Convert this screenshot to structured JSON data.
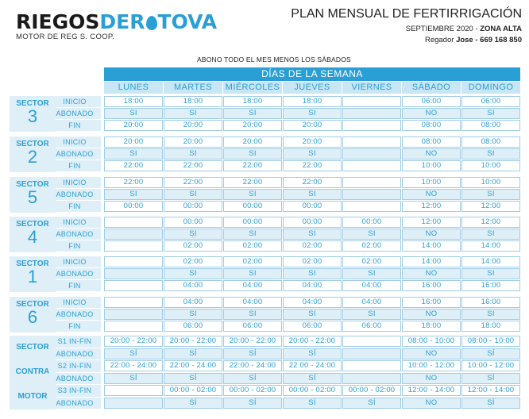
{
  "logo": {
    "part1": "RIEGOS",
    "part2": "DER",
    "part3": "TOVA",
    "sub": "MOTOR DE REG S. COOP."
  },
  "header": {
    "title": "PLAN MENSUAL DE FERTIRRIGACIÓN",
    "period": "SEPTIEMBRE 2020 - ",
    "zone": "ZONA ALTA",
    "regador_label": "Regador ",
    "regador_name": "Jose - 669 168 850"
  },
  "note": "ABONO TODO EL MES MENOS LOS SÁBADOS",
  "banner": "DÍAS DE LA SEMANA",
  "days": [
    "LUNES",
    "MARTES",
    "MIÉRCOLES",
    "JUEVES",
    "VIERNES",
    "SÁBADO",
    "DOMINGO"
  ],
  "row_labels": [
    "INICIO",
    "ABONADO",
    "FIN"
  ],
  "sector_word": "SECTOR",
  "sectors": [
    {
      "num": "3",
      "rows": [
        [
          "18:00",
          "18:00",
          "18:00",
          "18:00",
          "",
          "06:00",
          "06:00"
        ],
        [
          "SI",
          "SI",
          "SI",
          "SI",
          "",
          "NO",
          "SI"
        ],
        [
          "20:00",
          "20:00",
          "20:00",
          "20:00",
          "",
          "08:00",
          "08:00"
        ]
      ]
    },
    {
      "num": "2",
      "rows": [
        [
          "20:00",
          "20:00",
          "20:00",
          "20:00",
          "",
          "08:00",
          "08:00"
        ],
        [
          "SI",
          "SI",
          "SI",
          "SI",
          "",
          "NO",
          "SI"
        ],
        [
          "22:00",
          "22:00",
          "22:00",
          "22:00",
          "",
          "10:00",
          "10:00"
        ]
      ]
    },
    {
      "num": "5",
      "rows": [
        [
          "22:00",
          "22:00",
          "22:00",
          "22:00",
          "",
          "10:00",
          "10:00"
        ],
        [
          "SI",
          "SI",
          "SI",
          "SI",
          "",
          "NO",
          "SI"
        ],
        [
          "00:00",
          "00:00",
          "00:00",
          "00:00",
          "",
          "12:00",
          "12:00"
        ]
      ]
    },
    {
      "num": "4",
      "rows": [
        [
          "",
          "00:00",
          "00:00",
          "00:00",
          "00:00",
          "12:00",
          "12:00"
        ],
        [
          "",
          "SI",
          "SI",
          "SI",
          "SI",
          "NO",
          "SI"
        ],
        [
          "",
          "02:00",
          "02:00",
          "02:00",
          "02:00",
          "14:00",
          "14:00"
        ]
      ]
    },
    {
      "num": "1",
      "rows": [
        [
          "",
          "02:00",
          "02:00",
          "02:00",
          "02:00",
          "14:00",
          "14:00"
        ],
        [
          "",
          "SI",
          "SI",
          "SI",
          "SI",
          "NO",
          "SI"
        ],
        [
          "",
          "04:00",
          "04:00",
          "04:00",
          "04:00",
          "16:00",
          "16:00"
        ]
      ]
    },
    {
      "num": "6",
      "rows": [
        [
          "",
          "04:00",
          "04:00",
          "04:00",
          "04:00",
          "16:00",
          "16:00"
        ],
        [
          "",
          "SI",
          "SI",
          "SI",
          "SI",
          "NO",
          "SI"
        ],
        [
          "",
          "06:00",
          "06:00",
          "06:00",
          "06:00",
          "18:00",
          "18:00"
        ]
      ]
    }
  ],
  "motor": {
    "labels": [
      "SECTOR",
      "CONTRA",
      "MOTOR"
    ],
    "row_labels": [
      "S1 IN-FIN",
      "ABONADO",
      "S2 IN-FIN",
      "ABONADO",
      "S3 IN-FIN",
      "ABONADO"
    ],
    "rows": [
      [
        "20:00 - 22:00",
        "20:00 - 22:00",
        "20:00 - 22:00",
        "20:00 - 22:00",
        "",
        "08:00 - 10:00",
        "08:00 - 10:00"
      ],
      [
        "SÍ",
        "SÍ",
        "SÍ",
        "SÍ",
        "",
        "NO",
        "SÍ"
      ],
      [
        "22:00 - 24:00",
        "22:00 - 24:00",
        "22:00 - 24:00",
        "22:00 - 24:00",
        "",
        "10:00 - 12:00",
        "10:00 - 12:00"
      ],
      [
        "SÍ",
        "SÍ",
        "SÍ",
        "SÍ",
        "",
        "NO",
        "SÍ"
      ],
      [
        "",
        "00:00 - 02:00",
        "00:00 - 02:00",
        "00:00 - 02:00",
        "00:00 - 02:00",
        "12:00 - 14:00",
        "12:00 - 14:00"
      ],
      [
        "",
        "SÍ",
        "SÍ",
        "SÍ",
        "SÍ",
        "NO",
        "SÍ"
      ]
    ]
  },
  "colors": {
    "accent": "#2a9fd6",
    "light": "#dfeff8",
    "header_light": "#c9e6f5"
  }
}
